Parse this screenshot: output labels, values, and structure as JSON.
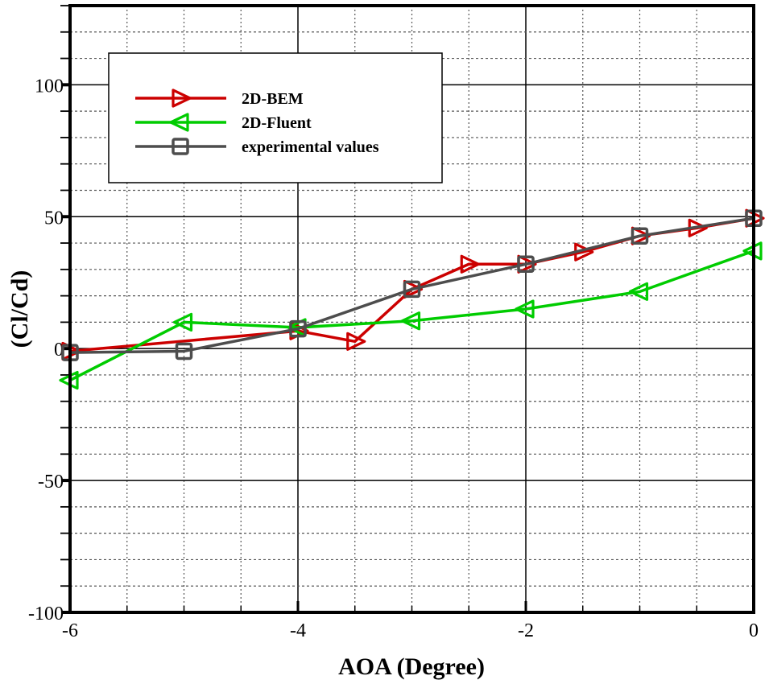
{
  "chart_data": {
    "type": "line",
    "title": "",
    "xlabel": "AOA (Degree)",
    "ylabel": "(Cl/Cd)",
    "xlim": [
      -6,
      0
    ],
    "ylim": [
      -100,
      130
    ],
    "x_major_ticks": [
      -6,
      -4,
      -2,
      0
    ],
    "x_tick_labels": [
      "-6",
      "-4",
      "-2",
      "0"
    ],
    "x_minor_step": 0.5,
    "y_major_ticks": [
      -100,
      -50,
      0,
      50,
      100
    ],
    "y_tick_labels": [
      "-100",
      "-50",
      "0",
      "50",
      "100"
    ],
    "y_minor_step": 10,
    "grid": true,
    "legend_position": "upper-left",
    "series": [
      {
        "name": "2D-BEM",
        "color": "#cc0000",
        "marker": "triangle-right",
        "x": [
          -6,
          -4,
          -3.5,
          -3,
          -2.5,
          -2,
          -1.5,
          -1,
          -0.5,
          0
        ],
        "y": [
          -1,
          6.7,
          2.7,
          22.5,
          32,
          32,
          36.6,
          42.7,
          45.7,
          49.4
        ]
      },
      {
        "name": "2D-Fluent",
        "color": "#00cc00",
        "marker": "triangle-left",
        "x": [
          -6,
          -5,
          -4,
          -3,
          -2,
          -1,
          0
        ],
        "y": [
          -12,
          10,
          8,
          10.5,
          15,
          21.6,
          37
        ]
      },
      {
        "name": "experimental values",
        "color": "#4d4d4d",
        "marker": "square",
        "x": [
          -6,
          -5,
          -4,
          -3,
          -2,
          -1,
          0
        ],
        "y": [
          -1.5,
          -1,
          7.5,
          22.5,
          32,
          42.7,
          49.4
        ]
      }
    ]
  }
}
